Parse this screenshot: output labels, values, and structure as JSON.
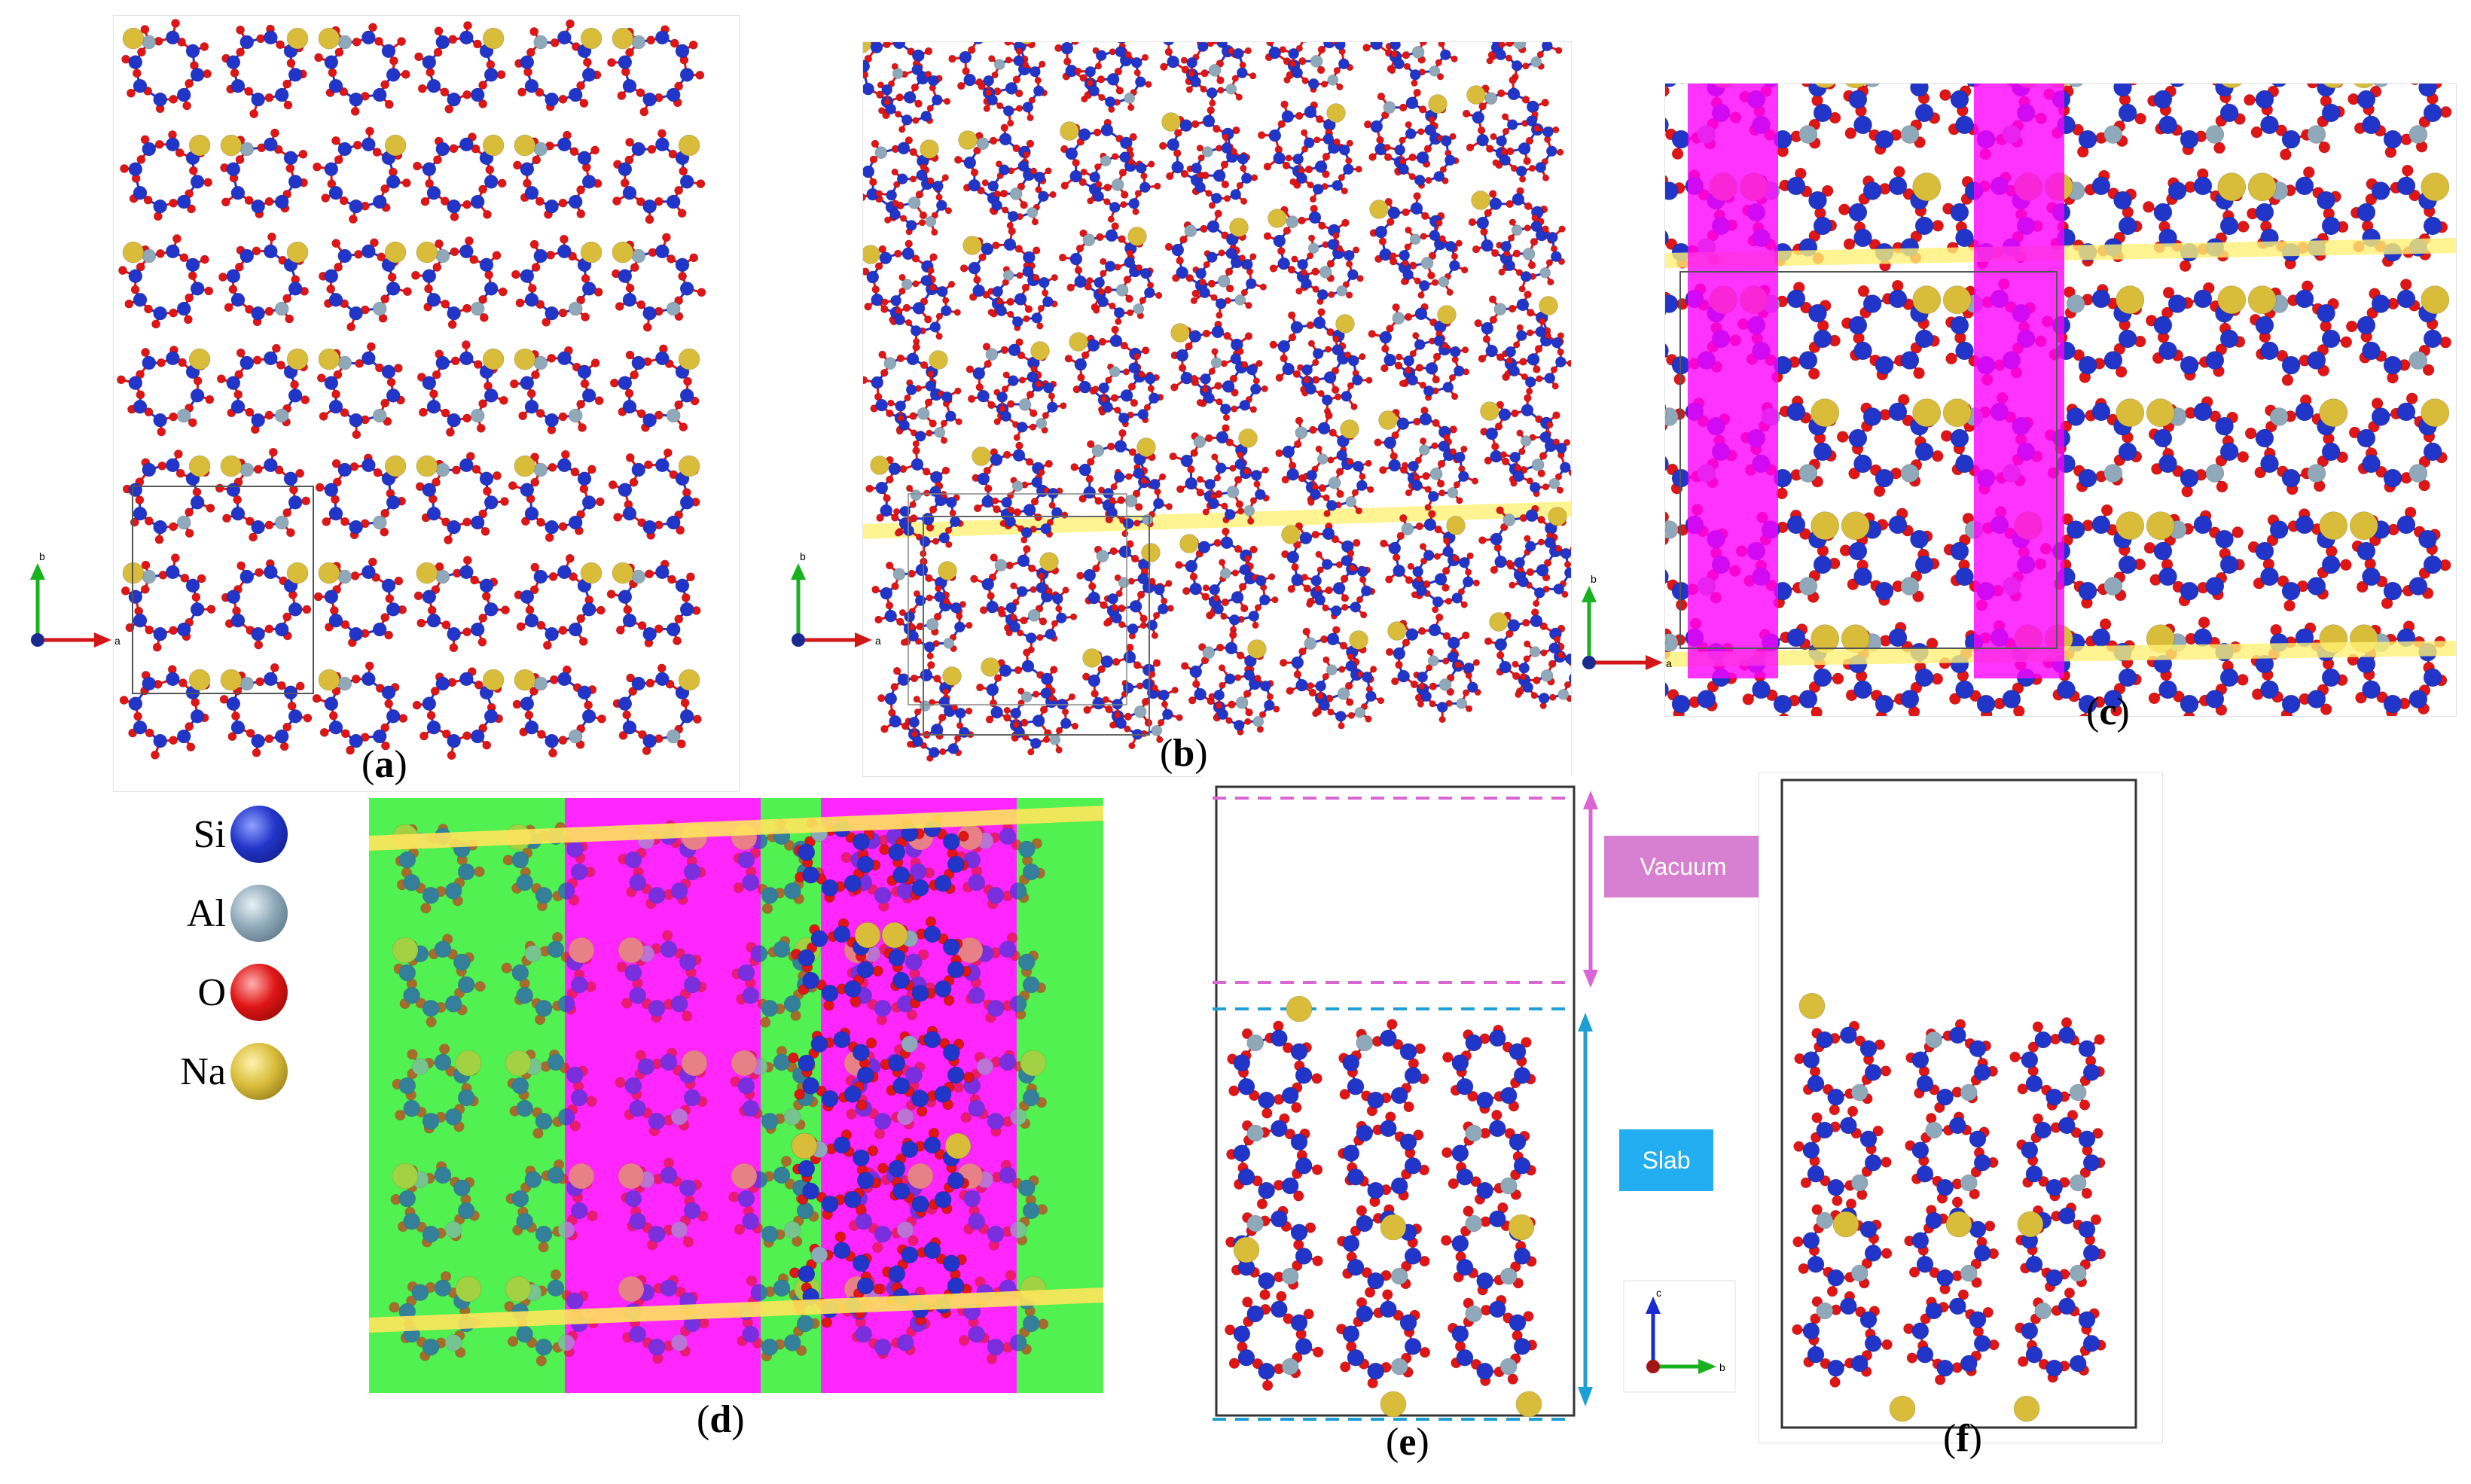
{
  "panel_labels": {
    "a": "a",
    "b": "b",
    "c": "c",
    "d": "d",
    "e": "e",
    "f": "f"
  },
  "legend": [
    {
      "symbol": "Si",
      "color": "#2235c9"
    },
    {
      "symbol": "Al",
      "color": "#8fa9ba"
    },
    {
      "symbol": "O",
      "color": "#e01515"
    },
    {
      "symbol": "Na",
      "color": "#d9bd3a"
    }
  ],
  "annotations": {
    "vacuum": "Vacuum",
    "slab": "Slab"
  },
  "axis_labels": {
    "a_panel": {
      "vertical": "b",
      "horizontal": "a"
    },
    "b_panel": {
      "vertical": "b",
      "horizontal": "a"
    },
    "c_panel": {
      "vertical": "b",
      "horizontal": "a"
    },
    "e_panel": {
      "vertical": "c",
      "horizontal": "b"
    }
  },
  "colors": {
    "si": "#2235c9",
    "al": "#8fa9ba",
    "o": "#e01515",
    "na": "#d9bd3a",
    "plane_magenta": "#ff00ff",
    "plane_green": "#33ee33",
    "plane_yellow": "#fff176",
    "vacuum_tag": "#d77fd0",
    "slab_tag": "#22aef0",
    "vacuum_line": "#d966d3",
    "slab_line": "#1e9fd8"
  }
}
